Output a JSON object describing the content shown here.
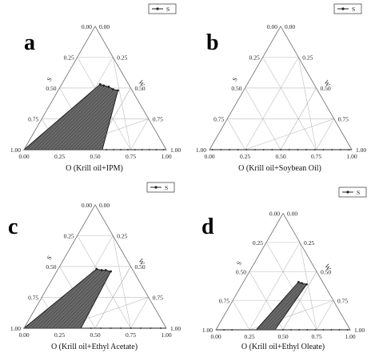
{
  "chart_data": [
    {
      "type": "ternary",
      "panel": "a",
      "title": "O (Krill oil+IPM)",
      "left_axis_label": "S",
      "right_axis_label": "W",
      "legend": [
        "S"
      ],
      "ticks": [
        "0.00",
        "0.25",
        "0.50",
        "0.75",
        "1.00"
      ],
      "region_points": [
        {
          "O": 1.0,
          "S": 0.0,
          "W": 0.0
        },
        {
          "O": 0.69,
          "S": 0.31,
          "W": 0.0
        },
        {
          "O": 0.65,
          "S": 0.59,
          "W": 0.0
        },
        {
          "O": 0.59,
          "S": 0.59,
          "W": 0.0
        },
        {
          "O": 0.55,
          "S": 0.58,
          "W": 0.0
        },
        {
          "O": 0.5,
          "S": 0.57,
          "W": 0.0
        },
        {
          "O": 0.45,
          "S": 0.55,
          "W": 0.0
        },
        {
          "O": 0.44,
          "S": 0.0,
          "W": 0.56
        }
      ],
      "boundary_base": [
        0.58,
        0.63,
        0.68,
        0.73,
        0.78,
        0.83,
        0.88,
        0.93,
        0.98
      ]
    },
    {
      "type": "ternary",
      "panel": "b",
      "title": "O (Krill oil+Soybean Oil)",
      "left_axis_label": "S",
      "right_axis_label": "W",
      "legend": [
        "S"
      ],
      "ticks": [
        "0.00",
        "0.25",
        "0.50",
        "0.75",
        "1.00"
      ],
      "region_points": [],
      "boundary_base": [
        0.02,
        0.08,
        0.14,
        0.2,
        0.26,
        0.32,
        0.38,
        0.44,
        0.5,
        0.56,
        0.62,
        0.68,
        0.74,
        0.8,
        0.86,
        0.92,
        0.98
      ]
    },
    {
      "type": "ternary",
      "panel": "c",
      "title": "O (Krill oil+Ethyl Acetate)",
      "left_axis_label": "S",
      "right_axis_label": "W",
      "legend": [
        "S"
      ],
      "ticks": [
        "0.00",
        "0.25",
        "0.50",
        "0.75",
        "1.00"
      ],
      "region_points": [],
      "boundary_base": [
        0.47,
        0.54,
        0.61,
        0.68,
        0.75,
        0.82,
        0.89,
        0.96
      ]
    },
    {
      "type": "ternary",
      "panel": "d",
      "title": "O (Krill oil+Ethyl Oleate)",
      "left_axis_label": "S",
      "right_axis_label": "W",
      "legend": [
        "S"
      ],
      "ticks": [
        "0.00",
        "0.25",
        "0.50",
        "0.75",
        "1.00"
      ],
      "region_points": [],
      "boundary_base": [
        0.06,
        0.12,
        0.5,
        0.56,
        0.62,
        0.68,
        0.74,
        0.8,
        0.86,
        0.92,
        0.98
      ]
    }
  ],
  "region_shapes": {
    "a": [
      [
        0.0,
        0.0
      ],
      [
        0.27,
        0.53
      ],
      [
        0.3,
        0.52
      ],
      [
        0.34,
        0.51
      ],
      [
        0.38,
        0.49
      ],
      [
        0.42,
        0.48
      ],
      [
        0.55,
        0.0
      ]
    ],
    "b": [],
    "c": [
      [
        0.0,
        0.0
      ],
      [
        0.27,
        0.48
      ],
      [
        0.31,
        0.47
      ],
      [
        0.34,
        0.47
      ],
      [
        0.38,
        0.46
      ],
      [
        0.4,
        0.0
      ]
    ],
    "d": [
      [
        0.3,
        0.0
      ],
      [
        0.41,
        0.41
      ],
      [
        0.44,
        0.4
      ],
      [
        0.48,
        0.39
      ],
      [
        0.44,
        0.0
      ]
    ]
  },
  "colors": {
    "grid": "#bdbdbd",
    "frame": "#6b6b6b",
    "region_fill": "#6a6a6a",
    "line": "#222222"
  }
}
